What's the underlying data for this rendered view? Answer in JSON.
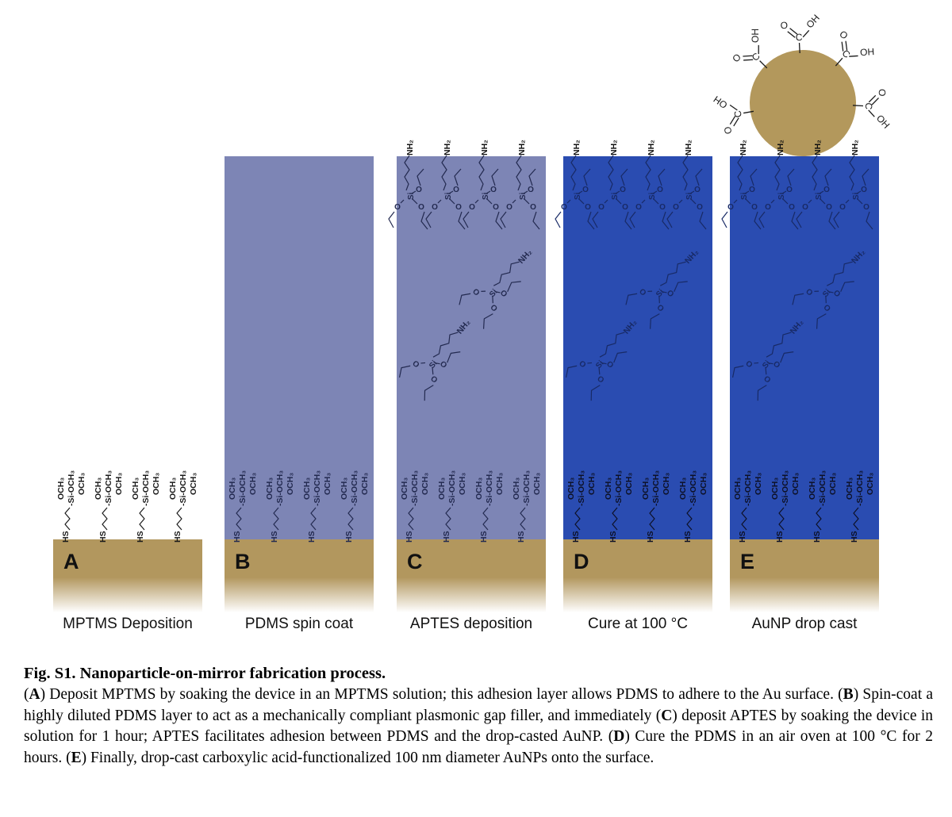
{
  "figure": {
    "panels": [
      {
        "letter": "A",
        "label": "MPTMS Deposition",
        "layer": "none",
        "aptes": false,
        "aunp": false
      },
      {
        "letter": "B",
        "label": "PDMS spin coat",
        "layer": "uncured",
        "aptes": false,
        "aunp": false
      },
      {
        "letter": "C",
        "label": "APTES deposition",
        "layer": "uncured",
        "aptes": true,
        "aunp": false
      },
      {
        "letter": "D",
        "label": "Cure at 100 °C",
        "layer": "cured",
        "aptes": true,
        "aunp": false
      },
      {
        "letter": "E",
        "label": "AuNP drop cast",
        "layer": "cured",
        "aptes": true,
        "aunp": true
      }
    ],
    "colors": {
      "pdms_uncured": "#7D85B5",
      "pdms_cured": "#2A4CB1",
      "gold": "#B2975E",
      "gold_nanoparticle": "#B3985C",
      "ink_on_white": "#1A1A1A",
      "ink_on_uncured": "#232A50",
      "ink_on_cured": "#182A66",
      "ink_on_cured_dark": "#0D1126",
      "amine_ink": "#111111"
    },
    "molecule_labels": {
      "thiol": "HS",
      "silane_chain": "-Si-OCH₃",
      "methoxy": "OCH₃",
      "amine": "NH₂",
      "silicon": "Si",
      "oxygen": "O",
      "carbon": "C",
      "hydroxyl": "OH"
    }
  },
  "caption": {
    "title": "Fig. S1. Nanoparticle-on-mirror fabrication process.",
    "body": "(A) Deposit MPTMS by soaking the device in an MPTMS solution; this adhesion layer allows PDMS to adhere to the Au surface. (B) Spin-coat a highly diluted PDMS layer to act as a mechanically compliant plasmonic gap filler, and immediately (C) deposit APTES by soaking the device in solution for 1 hour; APTES facilitates adhesion between PDMS and the drop-casted AuNP. (D) Cure the PDMS in an air oven at 100 °C for 2 hours. (E) Finally, drop-cast carboxylic acid-functionalized 100 nm diameter AuNPs onto the surface."
  }
}
